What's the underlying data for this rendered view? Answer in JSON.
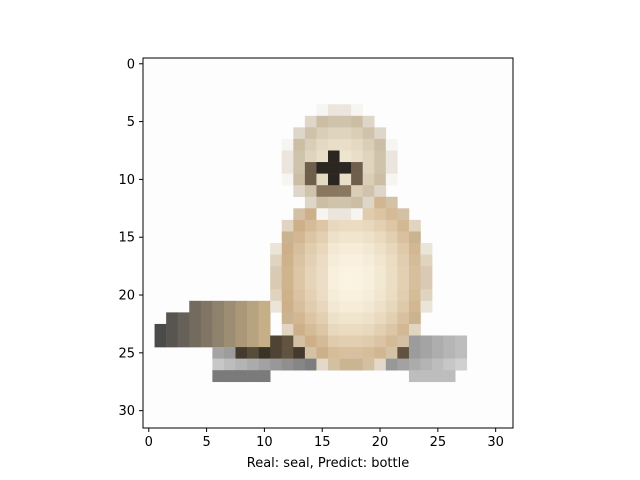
{
  "figure": {
    "xlabel": "Real: seal, Predict: bottle",
    "image_subject": "seal",
    "colors": {
      "background": "#ffffff",
      "axes_frame": "#000000",
      "seal_light": "#f4ecd8",
      "seal_mid": "#d8c4a0",
      "seal_dark": "#3a3328",
      "shadow_gray": "#8c8c8c"
    },
    "grid_size": 32,
    "x_axis": {
      "ticks": [
        0,
        5,
        10,
        15,
        20,
        25,
        30
      ],
      "tick_labels": [
        "0",
        "5",
        "10",
        "15",
        "20",
        "25",
        "30"
      ]
    },
    "y_axis": {
      "ticks": [
        0,
        5,
        10,
        15,
        20,
        25,
        30
      ],
      "tick_labels": [
        "0",
        "5",
        "10",
        "15",
        "20",
        "25",
        "30"
      ]
    }
  }
}
